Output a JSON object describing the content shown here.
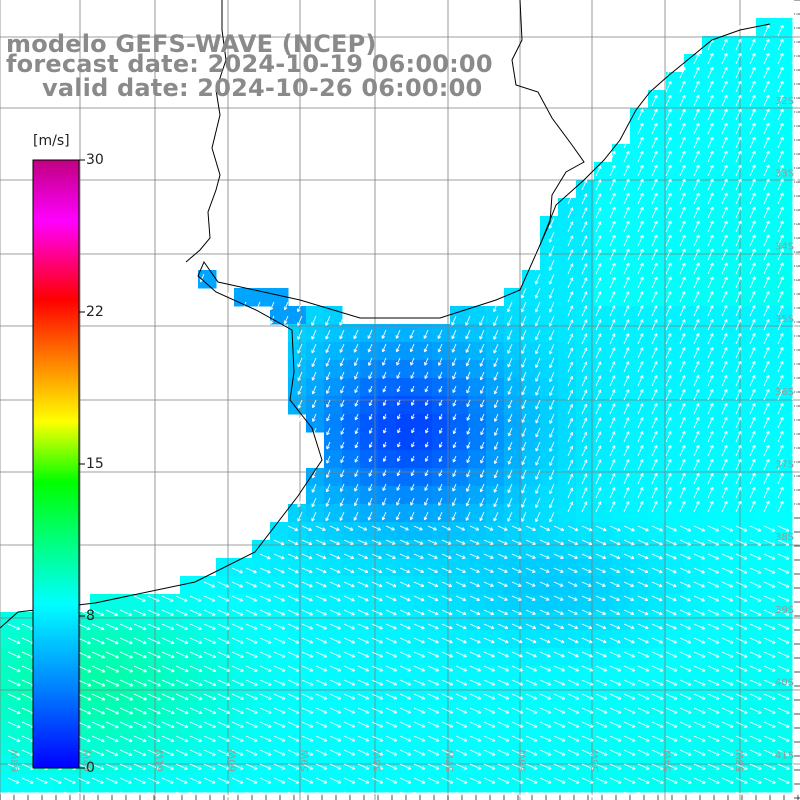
{
  "title": {
    "line1": "modelo GEFS-WAVE (NCEP)",
    "line2": "forecast date: 2024-10-19 06:00:00",
    "line3": "valid date: 2024-10-26 06:00:00"
  },
  "colorbar": {
    "unit": "[m/s]",
    "ticks": [
      "30",
      "22",
      "15",
      "8",
      "0"
    ],
    "min": 0,
    "max": 30,
    "colors": [
      "#0000ff",
      "#0080ff",
      "#00ffff",
      "#00ff80",
      "#00ff00",
      "#ffff00",
      "#ff8000",
      "#ff0000",
      "#ff00ff",
      "#c00080"
    ]
  },
  "map": {
    "lat_labels": [
      "32S",
      "33S",
      "34S",
      "35S",
      "36S",
      "37S",
      "38S",
      "39S",
      "40S",
      "41S"
    ],
    "lon_labels": [
      "63W",
      "62W",
      "61W",
      "60W",
      "59W",
      "58W",
      "57W",
      "56W",
      "55W",
      "54W",
      "53W"
    ],
    "land_color": "#ffffff",
    "coast_color": "#000000",
    "grid_color": "#7f7f7f",
    "arrow_color": "#ffffff",
    "wind_speed_range_ms": [
      0,
      12
    ]
  }
}
